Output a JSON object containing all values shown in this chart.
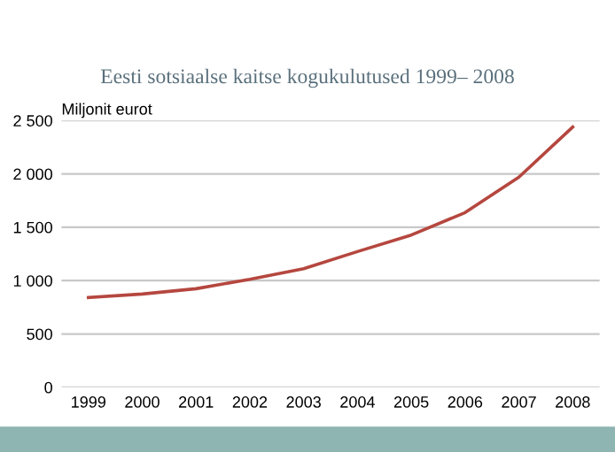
{
  "chart_data": {
    "type": "line",
    "title": "Eesti sotsiaalse kaitse kogukulutused 1999– 2008",
    "ylabel": "Miljonit eurot",
    "categories": [
      "1999",
      "2000",
      "2001",
      "2002",
      "2003",
      "2004",
      "2005",
      "2006",
      "2007",
      "2008"
    ],
    "series": [
      {
        "color": "#b5473f",
        "values": [
          841,
          874,
          924,
          1012,
          1112,
          1272,
          1427,
          1637,
          1969,
          2439
        ]
      }
    ],
    "ylim": [
      0,
      2500
    ],
    "yticks": [
      {
        "value": 0,
        "label": "0"
      },
      {
        "value": 500,
        "label": "500"
      },
      {
        "value": 1000,
        "label": "1 000"
      },
      {
        "value": 1500,
        "label": "1 500"
      },
      {
        "value": 2000,
        "label": "2 000"
      },
      {
        "value": 2500,
        "label": "2 500"
      }
    ],
    "grid": "y",
    "marker": "none",
    "line_style": "solid"
  }
}
